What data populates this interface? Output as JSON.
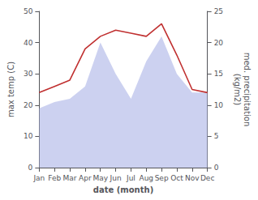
{
  "chart_data": {
    "type": "line",
    "xlabel": "date (month)",
    "ylabel": "max temp (C)",
    "y2label": "med. precipitation\n(kg/m2)",
    "categories": [
      "Jan",
      "Feb",
      "Mar",
      "Apr",
      "May",
      "Jun",
      "Jul",
      "Aug",
      "Sep",
      "Oct",
      "Nov",
      "Dec"
    ],
    "series": [
      {
        "type": "area",
        "axis": "y2",
        "color": "#b0b8e8",
        "values": [
          9.5,
          10.5,
          11,
          13,
          20,
          15,
          11,
          17,
          21,
          15,
          12,
          12
        ]
      },
      {
        "type": "line",
        "color": "#c03030",
        "values": [
          24,
          26,
          28,
          38,
          42,
          44,
          43,
          42,
          46,
          36,
          25,
          24
        ]
      }
    ],
    "ylim": [
      0,
      50
    ],
    "yticks": [
      0,
      10,
      20,
      30,
      40,
      50
    ],
    "y2lim": [
      0,
      25
    ],
    "y2ticks": [
      0,
      5,
      10,
      15,
      20,
      25
    ],
    "grid": false
  }
}
